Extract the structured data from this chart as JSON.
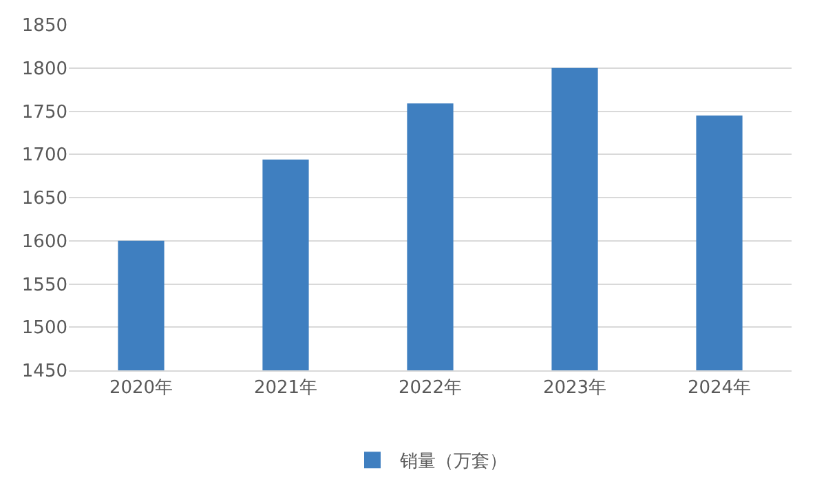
{
  "chart_data": {
    "type": "bar",
    "categories": [
      "2020年",
      "2021年",
      "2022年",
      "2023年",
      "2024年"
    ],
    "series": [
      {
        "name": "销量（万套）",
        "color": "#3f7fc0",
        "values": [
          1600,
          1694,
          1759,
          1800,
          1745
        ]
      }
    ],
    "ylim": [
      1450,
      1850
    ],
    "yticks": [
      1450,
      1500,
      1550,
      1600,
      1650,
      1700,
      1750,
      1800,
      1850
    ],
    "grid": "y",
    "legend": "bottom"
  }
}
